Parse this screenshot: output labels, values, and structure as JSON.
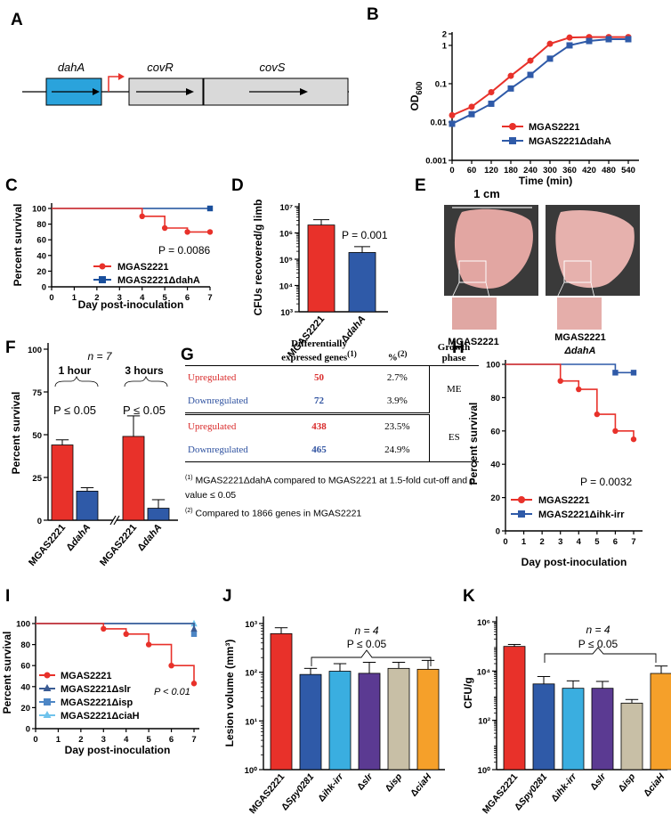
{
  "panels": {
    "A": {
      "letter": "A",
      "genes": [
        "dahA",
        "covR",
        "covS"
      ],
      "colors": {
        "dahA": "#2aa3dc",
        "covR": "#d9d9d9",
        "covS": "#d9d9d9",
        "promoter": "#e8312a"
      }
    },
    "B": {
      "letter": "B",
      "ylabel": "OD",
      "ylabel_sub": "600",
      "xlabel": "Time (min)",
      "legend": [
        "MGAS2221",
        "MGAS2221ΔdahA"
      ]
    },
    "C": {
      "letter": "C",
      "ylabel": "Percent survival",
      "xlabel": "Day post-inoculation",
      "pvalue": "P = 0.0086",
      "legend": [
        "MGAS2221",
        "MGAS2221ΔdahA"
      ]
    },
    "D": {
      "letter": "D",
      "ylabel": "CFUs recovered/g limb",
      "pvalue": "P = 0.001",
      "categories": [
        "MGAS2221",
        "ΔdahA"
      ]
    },
    "E": {
      "letter": "E",
      "scale_label": "1 cm",
      "captions": [
        "MGAS2221",
        "MGAS2221",
        "ΔdahA"
      ]
    },
    "F": {
      "letter": "F",
      "ylabel": "Percent survival",
      "n_label": "n = 7",
      "group_labels": [
        "1 hour",
        "3 hours"
      ],
      "pvalues": [
        "P ≤ 0.05",
        "P ≤ 0.05"
      ],
      "categories": [
        "MGAS2221",
        "ΔdahA",
        "MGAS2221",
        "ΔdahA"
      ]
    },
    "G": {
      "letter": "G",
      "headers": [
        "Differentially expressed genes",
        "%",
        "Growth phase"
      ],
      "header_sups": [
        "(1)",
        "(2)"
      ],
      "rows": [
        {
          "label": "Upregulated",
          "genes": "50",
          "pct": "2.7%"
        },
        {
          "label": "Downregulated",
          "genes": "72",
          "pct": "3.9%"
        },
        {
          "label": "Upregulated",
          "genes": "438",
          "pct": "23.5%"
        },
        {
          "label": "Downregulated",
          "genes": "465",
          "pct": "24.9%"
        }
      ],
      "phases": [
        "ME",
        "ES"
      ],
      "footnotes": [
        {
          "sup": "(1)",
          "text": " MGAS2221ΔdahA compared to MGAS2221 at 1.5-fold cut-off and p value ≤ 0.05"
        },
        {
          "sup": "(2)",
          "text": " Compared to 1866 genes in MGAS2221"
        }
      ]
    },
    "H": {
      "letter": "H",
      "ylabel": "Percent survival",
      "xlabel": "Day post-inoculation",
      "pvalue": "P = 0.0032",
      "legend": [
        "MGAS2221",
        "MGAS2221Δihk-irr"
      ]
    },
    "I": {
      "letter": "I",
      "ylabel": "Percent survival",
      "xlabel": "Day post-inoculation",
      "pvalue": "P < 0.01",
      "legend": [
        "MGAS2221",
        "MGAS2221Δslr",
        "MGAS2221Δisp",
        "MGAS2221ΔciaH"
      ]
    },
    "J": {
      "letter": "J",
      "ylabel": "Lesion volume (mm³)",
      "n_label": "n = 4",
      "pvalue": "P ≤ 0.05",
      "categories": [
        "MGAS2221",
        "ΔSpy0281",
        "Δihk-irr",
        "Δslr",
        "Δisp",
        "ΔciaH"
      ]
    },
    "K": {
      "letter": "K",
      "ylabel": "CFU/g",
      "n_label": "n = 4",
      "pvalue": "P ≤ 0.05",
      "categories": [
        "MGAS2221",
        "ΔSpy0281",
        "Δihk-irr",
        "Δslr",
        "Δisp",
        "ΔciaH"
      ]
    }
  },
  "colors": {
    "red": "#e8312a",
    "blue": "#2f5aa8",
    "lightblue": "#3aaee0",
    "purple": "#5b3a92",
    "beige": "#c8bfa6",
    "orange": "#f5a02a",
    "darkblue": "#1a4f9c"
  },
  "chart_data": [
    {
      "panel": "B",
      "type": "line",
      "title": "",
      "xlabel": "Time (min)",
      "ylabel": "OD600",
      "yscale": "log",
      "ylim": [
        0.001,
        2
      ],
      "xlim": [
        0,
        560
      ],
      "x": [
        0,
        60,
        120,
        180,
        240,
        300,
        360,
        420,
        480,
        540
      ],
      "xticks": [
        0,
        60,
        120,
        180,
        240,
        300,
        360,
        420,
        480,
        540
      ],
      "yticks": [
        0.001,
        0.01,
        0.1,
        1,
        2
      ],
      "ytick_labels": [
        "0.001",
        "0.01",
        "0.1",
        "1",
        "2"
      ],
      "series": [
        {
          "name": "MGAS2221",
          "values": [
            0.015,
            0.025,
            0.06,
            0.16,
            0.4,
            1.1,
            1.6,
            1.65,
            1.65,
            1.65
          ]
        },
        {
          "name": "MGAS2221ΔdahA",
          "values": [
            0.009,
            0.016,
            0.03,
            0.075,
            0.17,
            0.45,
            1.0,
            1.3,
            1.45,
            1.45
          ]
        }
      ]
    },
    {
      "panel": "C",
      "type": "line",
      "xlabel": "Day post-inoculation",
      "ylabel": "Percent survival",
      "xlim": [
        0,
        7
      ],
      "ylim": [
        0,
        100
      ],
      "xticks": [
        0,
        1,
        2,
        3,
        4,
        5,
        6,
        7
      ],
      "yticks": [
        0,
        20,
        40,
        60,
        80,
        100
      ],
      "series": [
        {
          "name": "MGAS2221",
          "x": [
            0,
            4,
            5,
            6,
            7
          ],
          "values": [
            100,
            90,
            75,
            70,
            70
          ]
        },
        {
          "name": "MGAS2221ΔdahA",
          "x": [
            0,
            7
          ],
          "values": [
            100,
            100
          ]
        }
      ]
    },
    {
      "panel": "D",
      "type": "bar",
      "yscale": "log",
      "ylim": [
        1000,
        10000000
      ],
      "categories": [
        "MGAS2221",
        "ΔdahA"
      ],
      "values": [
        2000000,
        180000
      ],
      "errors": [
        3200000,
        300000
      ],
      "yticks": [
        1000,
        10000,
        100000,
        1000000,
        10000000
      ],
      "ytick_labels": [
        "10³",
        "10⁴",
        "10⁵",
        "10⁶",
        "10⁷"
      ],
      "ylabel": "CFUs recovered/g limb"
    },
    {
      "panel": "F",
      "type": "bar",
      "ylim": [
        0,
        100
      ],
      "yticks": [
        0,
        25,
        50,
        75,
        100
      ],
      "categories": [
        "MGAS2221",
        "ΔdahA",
        "MGAS2221",
        "ΔdahA"
      ],
      "values": [
        44,
        17,
        49,
        7
      ],
      "errors": [
        47,
        19,
        61,
        12
      ],
      "ylabel": "Percent survival"
    },
    {
      "panel": "H",
      "type": "line",
      "xlabel": "Day post-inoculation",
      "ylabel": "Percent survival",
      "xlim": [
        0,
        7
      ],
      "ylim": [
        0,
        100
      ],
      "xticks": [
        0,
        1,
        2,
        3,
        4,
        5,
        6,
        7
      ],
      "yticks": [
        0,
        20,
        40,
        60,
        80,
        100
      ],
      "series": [
        {
          "name": "MGAS2221",
          "x": [
            0,
            3,
            4,
            5,
            6,
            7
          ],
          "values": [
            100,
            90,
            85,
            70,
            60,
            55
          ]
        },
        {
          "name": "MGAS2221Δihk-irr",
          "x": [
            0,
            6,
            7
          ],
          "values": [
            100,
            95,
            95
          ]
        }
      ]
    },
    {
      "panel": "I",
      "type": "line",
      "xlabel": "Day post-inoculation",
      "ylabel": "Percent survival",
      "xlim": [
        0,
        7
      ],
      "ylim": [
        0,
        100
      ],
      "xticks": [
        0,
        1,
        2,
        3,
        4,
        5,
        6,
        7
      ],
      "yticks": [
        0,
        20,
        40,
        60,
        80,
        100
      ],
      "series": [
        {
          "name": "MGAS2221",
          "x": [
            0,
            3,
            4,
            5,
            6,
            7
          ],
          "values": [
            100,
            95,
            90,
            80,
            60,
            43
          ]
        },
        {
          "name": "MGAS2221Δslr",
          "x": [
            0,
            7
          ],
          "values": [
            100,
            95
          ]
        },
        {
          "name": "MGAS2221Δisp",
          "x": [
            0,
            7
          ],
          "values": [
            100,
            90
          ]
        },
        {
          "name": "MGAS2221ΔciaH",
          "x": [
            0,
            7
          ],
          "values": [
            100,
            100
          ]
        }
      ]
    },
    {
      "panel": "J",
      "type": "bar",
      "yscale": "log",
      "ylim": [
        1,
        1000
      ],
      "yticks": [
        1,
        10,
        100,
        1000
      ],
      "ytick_labels": [
        "10⁰",
        "10¹",
        "10²",
        "10³"
      ],
      "categories": [
        "MGAS2221",
        "ΔSpy0281",
        "Δihk-irr",
        "Δslr",
        "Δisp",
        "ΔciaH"
      ],
      "values": [
        620,
        90,
        105,
        95,
        120,
        115
      ],
      "errors": [
        820,
        120,
        150,
        160,
        160,
        175
      ],
      "ylabel": "Lesion volume (mm³)"
    },
    {
      "panel": "K",
      "type": "bar",
      "yscale": "log",
      "ylim": [
        1,
        1000000
      ],
      "yticks": [
        1,
        100,
        10000,
        1000000
      ],
      "ytick_labels": [
        "10⁰",
        "10²",
        "10⁴",
        "10⁶"
      ],
      "categories": [
        "MGAS2221",
        "ΔSpy0281",
        "Δihk-irr",
        "Δslr",
        "Δisp",
        "ΔciaH"
      ],
      "values": [
        100000,
        3000,
        2000,
        2000,
        500,
        8000
      ],
      "errors": [
        120000,
        6000,
        4000,
        3800,
        700,
        16000
      ],
      "ylabel": "CFU/g"
    }
  ]
}
